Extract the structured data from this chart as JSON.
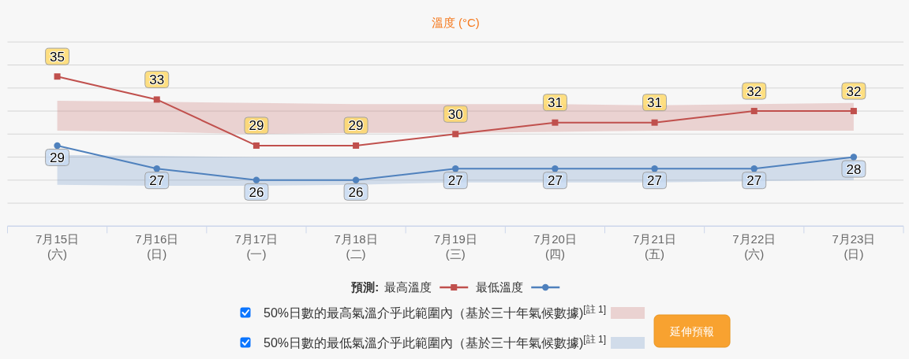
{
  "chart_data": {
    "type": "line",
    "title": "溫度 (°C)",
    "categories": [
      "7月15日\n(六)",
      "7月16日\n(日)",
      "7月17日\n(一)",
      "7月18日\n(二)",
      "7月19日\n(三)",
      "7月20日\n(四)",
      "7月21日\n(五)",
      "7月22日\n(六)",
      "7月23日\n(日)"
    ],
    "series": [
      {
        "name": "最高溫度",
        "color": "#c0504d",
        "marker": "square",
        "values": [
          35,
          33,
          29,
          29,
          30,
          31,
          31,
          32,
          32
        ],
        "lower": [
          30.3,
          30.2,
          30.0,
          30.1,
          30.1,
          30.2,
          30.3,
          30.3,
          30.3
        ],
        "upper": [
          32.9,
          32.8,
          32.7,
          32.6,
          32.6,
          32.6,
          32.5,
          32.6,
          32.7
        ]
      },
      {
        "name": "最低溫度",
        "color": "#4f81bd",
        "marker": "circle",
        "values": [
          29,
          27,
          26,
          26,
          27,
          27,
          27,
          27,
          28
        ],
        "lower": [
          25.6,
          25.5,
          25.5,
          25.6,
          25.8,
          25.8,
          25.8,
          25.9,
          26.0
        ],
        "upper": [
          28.2,
          28.1,
          28.0,
          28.0,
          28.0,
          28.0,
          28.0,
          28.0,
          28.0
        ]
      }
    ],
    "ylim": [
      22,
      38
    ],
    "yticks": [
      {
        "value": 24,
        "label": null
      },
      {
        "value": 26,
        "label": null
      },
      {
        "value": 28,
        "label": null
      },
      {
        "value": 30,
        "label": null
      },
      {
        "value": 32,
        "label": null
      },
      {
        "value": 34,
        "label": null
      },
      {
        "value": 36,
        "label": null
      },
      {
        "value": 38,
        "label": null
      }
    ],
    "grid": "y",
    "tick_labels": "x",
    "legend": "bottom",
    "legend_title": "預測:",
    "data_labels": true,
    "annotations": [
      "50%日數的最高氣溫介乎此範圍內（基於三十年氣候數據)$^{[註 1]}$",
      "50%日數的最低氣溫介乎此範圍內（基於三十年氣候數據)$^{[註 1]}$",
      "延伸預報"
    ]
  }
}
